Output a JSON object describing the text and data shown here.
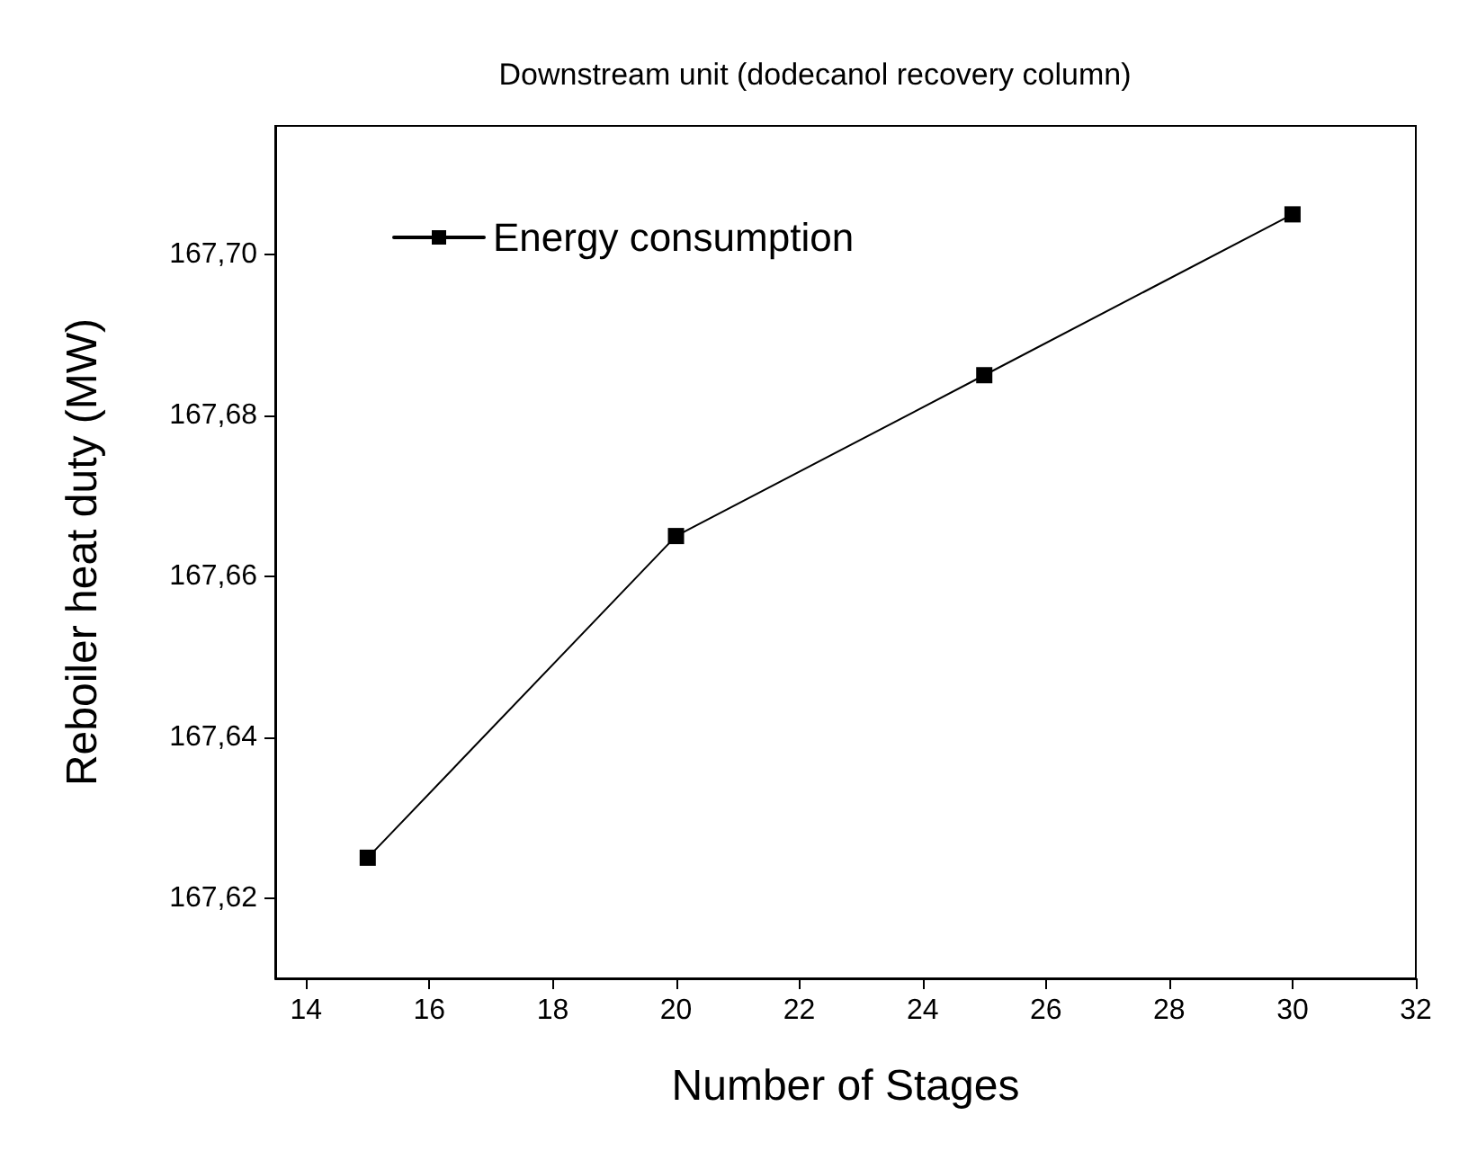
{
  "chart_data": {
    "type": "line",
    "title": "Downstream unit (dodecanol recovery column)",
    "xlabel": "Number of Stages",
    "ylabel": "Reboiler heat duty (MW)",
    "x": [
      15,
      20,
      25,
      30
    ],
    "series": [
      {
        "name": "Energy consumption",
        "color": "#000000",
        "values": [
          167.625,
          167.665,
          167.685,
          167.705
        ]
      }
    ],
    "xlim": [
      13.5,
      32
    ],
    "xticks": [
      14,
      16,
      18,
      20,
      22,
      24,
      26,
      28,
      30,
      32
    ],
    "ylim": [
      167.61,
      167.716
    ],
    "yticks": [
      {
        "value": 167.62,
        "label": "167,62"
      },
      {
        "value": 167.64,
        "label": "167,64"
      },
      {
        "value": 167.66,
        "label": "167,66"
      },
      {
        "value": 167.68,
        "label": "167,68"
      },
      {
        "value": 167.7,
        "label": "167,70"
      }
    ],
    "grid": false,
    "legend": "top left",
    "marker": "square",
    "line_style": "solid"
  }
}
